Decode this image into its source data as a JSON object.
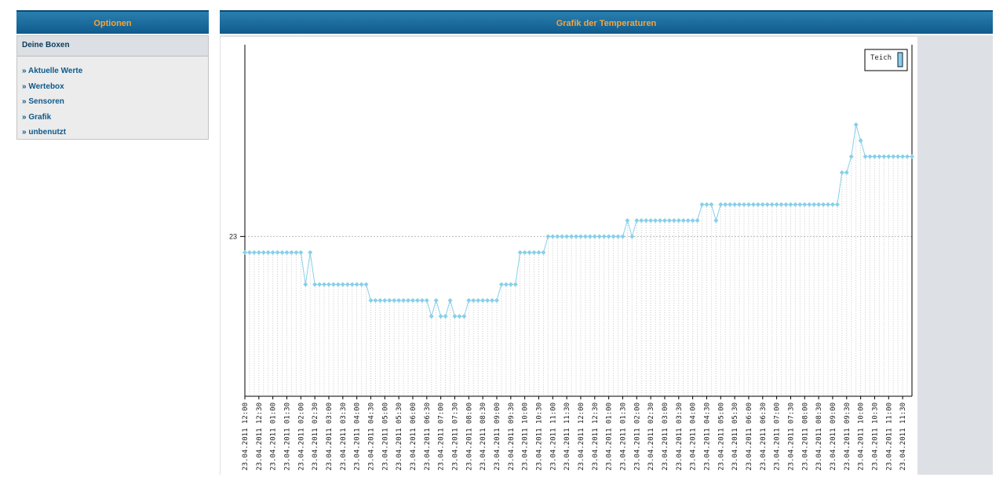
{
  "sidebar": {
    "title": "Optionen",
    "section": "Deine Boxen",
    "links": [
      "» Aktuelle Werte",
      "» Wertebox",
      "» Sensoren",
      "» Grafik",
      "» unbenutzt"
    ]
  },
  "chart_data": {
    "type": "line",
    "title": "Grafik der Temperaturen",
    "categories": [
      "23.04.2011 12:00",
      null,
      null,
      "23.04.2011 12:30",
      null,
      null,
      "23.04.2011 01:00",
      null,
      null,
      "23.04.2011 01:30",
      null,
      null,
      "23.04.2011 02:00",
      null,
      null,
      "23.04.2011 02:30",
      null,
      null,
      "23.04.2011 03:00",
      null,
      null,
      "23.04.2011 03:30",
      null,
      null,
      "23.04.2011 04:00",
      null,
      null,
      "23.04.2011 04:30",
      null,
      null,
      "23.04.2011 05:00",
      null,
      null,
      "23.04.2011 05:30",
      null,
      null,
      "23.04.2011 06:00",
      null,
      null,
      "23.04.2011 06:30",
      null,
      null,
      "23.04.2011 07:00",
      null,
      null,
      "23.04.2011 07:30",
      null,
      null,
      "23.04.2011 08:00",
      null,
      null,
      "23.04.2011 08:30",
      null,
      null,
      "23.04.2011 09:00",
      null,
      null,
      "23.04.2011 09:30",
      null,
      null,
      "23.04.2011 10:00",
      null,
      null,
      "23.04.2011 10:30",
      null,
      null,
      "23.04.2011 11:00",
      null,
      null,
      "23.04.2011 11:30",
      null,
      null,
      "23.04.2011 12:00",
      null,
      null,
      "23.04.2011 12:30",
      null,
      null,
      "23.04.2011 01:00",
      null,
      null,
      "23.04.2011 01:30",
      null,
      null,
      "23.04.2011 02:00",
      null,
      null,
      "23.04.2011 02:30",
      null,
      null,
      "23.04.2011 03:00",
      null,
      null,
      "23.04.2011 03:30",
      null,
      null,
      "23.04.2011 04:00",
      null,
      null,
      "23.04.2011 04:30",
      null,
      null,
      "23.04.2011 05:00",
      null,
      null,
      "23.04.2011 05:30",
      null,
      null,
      "23.04.2011 06:00",
      null,
      null,
      "23.04.2011 06:30",
      null,
      null,
      "23.04.2011 07:00",
      null,
      null,
      "23.04.2011 07:30",
      null,
      null,
      "23.04.2011 08:00",
      null,
      null,
      "23.04.2011 08:30",
      null,
      null,
      "23.04.2011 09:00",
      null,
      null,
      "23.04.2011 09:30",
      null,
      null,
      "23.04.2011 10:00",
      null,
      null,
      "23.04.2011 10:30",
      null,
      null,
      "23.04.2011 11:00",
      null,
      null,
      "23.04.2011 11:30",
      null,
      null
    ],
    "series": [
      {
        "name": "Teich",
        "color": "#87cfe8",
        "values": [
          22.9,
          22.9,
          22.9,
          22.9,
          22.9,
          22.9,
          22.9,
          22.9,
          22.9,
          22.9,
          22.9,
          22.9,
          22.9,
          22.7,
          22.9,
          22.7,
          22.7,
          22.7,
          22.7,
          22.7,
          22.7,
          22.7,
          22.7,
          22.7,
          22.7,
          22.7,
          22.7,
          22.6,
          22.6,
          22.6,
          22.6,
          22.6,
          22.6,
          22.6,
          22.6,
          22.6,
          22.6,
          22.6,
          22.6,
          22.6,
          22.5,
          22.6,
          22.5,
          22.5,
          22.6,
          22.5,
          22.5,
          22.5,
          22.6,
          22.6,
          22.6,
          22.6,
          22.6,
          22.6,
          22.6,
          22.7,
          22.7,
          22.7,
          22.7,
          22.9,
          22.9,
          22.9,
          22.9,
          22.9,
          22.9,
          23.0,
          23.0,
          23.0,
          23.0,
          23.0,
          23.0,
          23.0,
          23.0,
          23.0,
          23.0,
          23.0,
          23.0,
          23.0,
          23.0,
          23.0,
          23.0,
          23.0,
          23.1,
          23.0,
          23.1,
          23.1,
          23.1,
          23.1,
          23.1,
          23.1,
          23.1,
          23.1,
          23.1,
          23.1,
          23.1,
          23.1,
          23.1,
          23.1,
          23.2,
          23.2,
          23.2,
          23.1,
          23.2,
          23.2,
          23.2,
          23.2,
          23.2,
          23.2,
          23.2,
          23.2,
          23.2,
          23.2,
          23.2,
          23.2,
          23.2,
          23.2,
          23.2,
          23.2,
          23.2,
          23.2,
          23.2,
          23.2,
          23.2,
          23.2,
          23.2,
          23.2,
          23.2,
          23.2,
          23.4,
          23.4,
          23.5,
          23.7,
          23.6,
          23.5,
          23.5,
          23.5,
          23.5,
          23.5,
          23.5,
          23.5,
          23.5,
          23.5,
          23.5,
          23.5
        ]
      }
    ],
    "ylim": [
      22.0,
      24.2
    ],
    "yticks": [
      23
    ],
    "grid": true,
    "legend": "upper right"
  }
}
